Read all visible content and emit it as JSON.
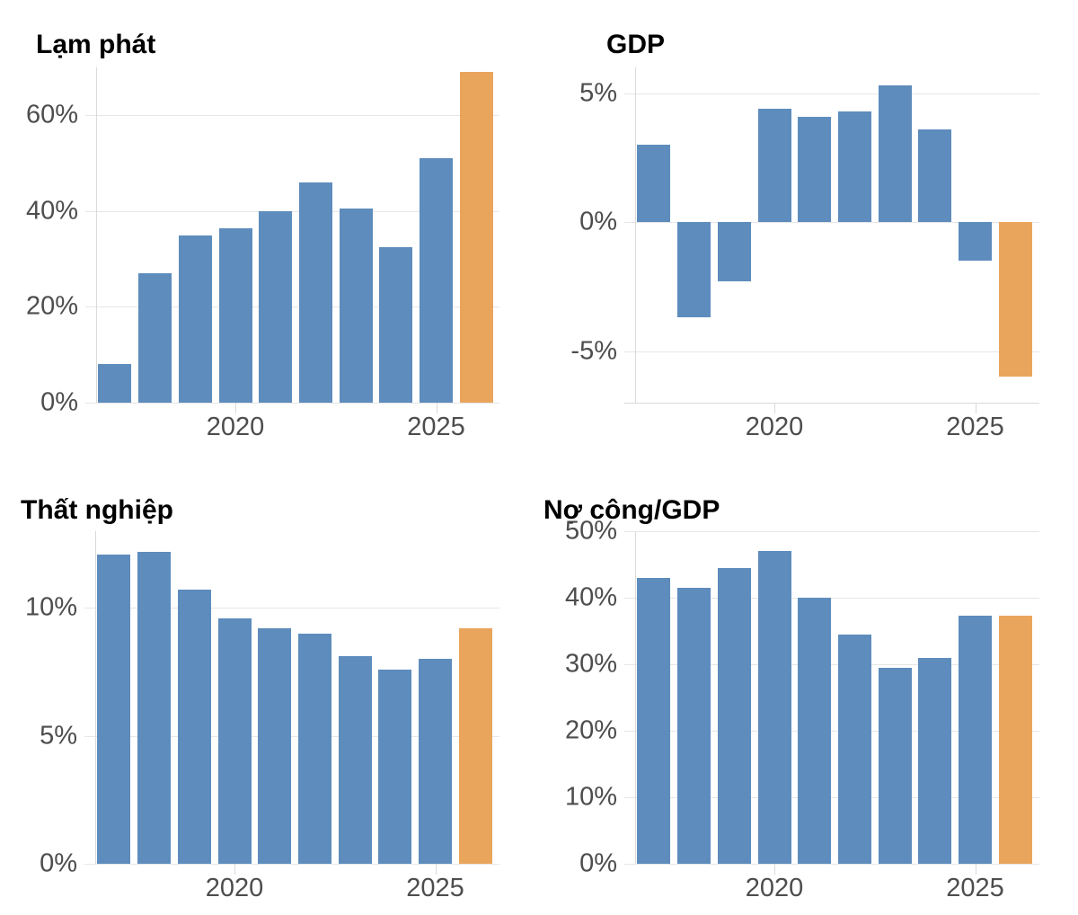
{
  "figure": {
    "background": "#FFFFFF"
  },
  "colors": {
    "bar": "#5D8CBD",
    "bar_highlight": "#EAA55D",
    "gridline": "#E6E6E6",
    "axis_line": "#D9D9D9",
    "tick_text": "#4D4D4D",
    "title_text": "#000000"
  },
  "chart_data": [
    {
      "type": "bar",
      "title": "Lạm phát",
      "x": [
        2017,
        2018,
        2019,
        2020,
        2021,
        2022,
        2023,
        2024,
        2025,
        2026
      ],
      "values": [
        8,
        27,
        35,
        36.5,
        40,
        46,
        40.5,
        32.5,
        51,
        69
      ],
      "highlight_last": true,
      "ylim": [
        0,
        70
      ],
      "yticks": [
        0,
        20,
        40,
        60
      ],
      "ytick_labels": [
        "0%",
        "20%",
        "40%",
        "60%"
      ],
      "xticks": [
        2020,
        2025
      ],
      "xtick_labels": [
        "2020",
        "2025"
      ],
      "grid": true,
      "legend": false
    },
    {
      "type": "bar",
      "title": "GDP",
      "x": [
        2017,
        2018,
        2019,
        2020,
        2021,
        2022,
        2023,
        2024,
        2025,
        2026
      ],
      "values": [
        3,
        -3.7,
        -2.3,
        4.4,
        4.1,
        4.3,
        5.3,
        3.6,
        -1.5,
        -6
      ],
      "highlight_last": true,
      "ylim": [
        -7,
        6
      ],
      "yticks": [
        -5,
        0,
        5
      ],
      "ytick_labels": [
        "-5%",
        "0%",
        "5%"
      ],
      "xticks": [
        2020,
        2025
      ],
      "xtick_labels": [
        "2020",
        "2025"
      ],
      "grid": true,
      "legend": false
    },
    {
      "type": "bar",
      "title": "Thất nghiệp",
      "x": [
        2017,
        2018,
        2019,
        2020,
        2021,
        2022,
        2023,
        2024,
        2025,
        2026
      ],
      "values": [
        12.1,
        12.2,
        10.7,
        9.6,
        9.2,
        9,
        8.1,
        7.6,
        8,
        9.2
      ],
      "highlight_last": true,
      "ylim": [
        0,
        13
      ],
      "yticks": [
        0,
        5,
        10
      ],
      "ytick_labels": [
        "0%",
        "5%",
        "10%"
      ],
      "xticks": [
        2020,
        2025
      ],
      "xtick_labels": [
        "2020",
        "2025"
      ],
      "grid": true,
      "legend": false
    },
    {
      "type": "bar",
      "title": "Nợ công/GDP",
      "x": [
        2017,
        2018,
        2019,
        2020,
        2021,
        2022,
        2023,
        2024,
        2025,
        2026
      ],
      "values": [
        43,
        41.5,
        44.5,
        47,
        40,
        34.5,
        29.5,
        31,
        37.3,
        37.3
      ],
      "highlight_last": true,
      "ylim": [
        0,
        50
      ],
      "yticks": [
        0,
        10,
        20,
        30,
        40,
        50
      ],
      "ytick_labels": [
        "0%",
        "10%",
        "20%",
        "30%",
        "40%",
        "50%"
      ],
      "xticks": [
        2020,
        2025
      ],
      "xtick_labels": [
        "2020",
        "2025"
      ],
      "grid": true,
      "legend": false
    }
  ]
}
